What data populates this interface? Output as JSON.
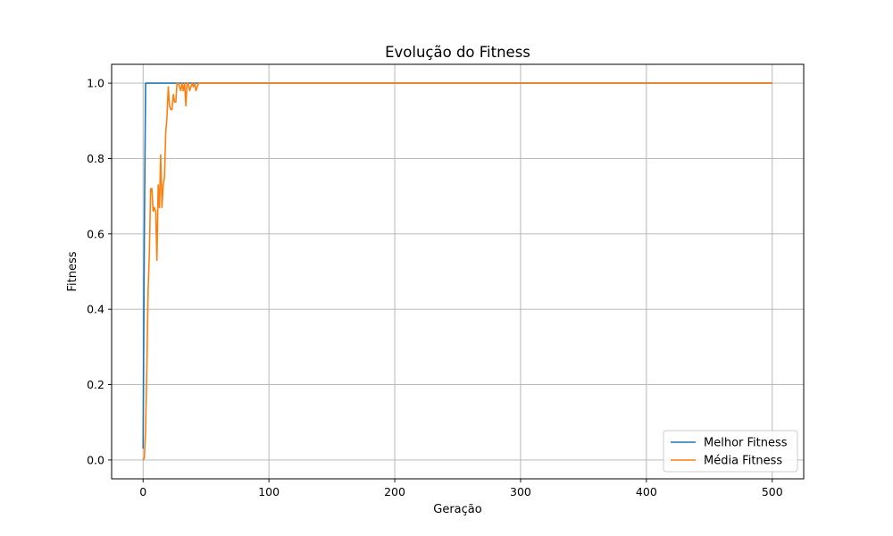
{
  "chart_data": {
    "type": "line",
    "title": "Evolução do Fitness",
    "xlabel": "Geração",
    "ylabel": "Fitness",
    "xlim": [
      -25,
      525
    ],
    "ylim": [
      -0.05,
      1.05
    ],
    "xticks": [
      0,
      100,
      200,
      300,
      400,
      500
    ],
    "yticks": [
      0.0,
      0.2,
      0.4,
      0.6,
      0.8,
      1.0
    ],
    "xtick_labels": [
      "0",
      "100",
      "200",
      "300",
      "400",
      "500"
    ],
    "ytick_labels": [
      "0.0",
      "0.2",
      "0.4",
      "0.6",
      "0.8",
      "1.0"
    ],
    "grid": true,
    "legend_position": "bottom-right",
    "series": [
      {
        "name": "Melhor Fitness",
        "color": "#1f77b4",
        "x": [
          0,
          1,
          2,
          3,
          500
        ],
        "y": [
          0.03,
          0.6,
          1.0,
          1.0,
          1.0
        ]
      },
      {
        "name": "Média Fitness",
        "color": "#ff7f0e",
        "x": [
          0,
          1,
          2,
          3,
          4,
          5,
          6,
          7,
          8,
          9,
          10,
          11,
          12,
          13,
          14,
          15,
          16,
          17,
          18,
          19,
          20,
          21,
          22,
          23,
          24,
          25,
          26,
          27,
          28,
          29,
          30,
          31,
          32,
          33,
          34,
          35,
          36,
          37,
          38,
          39,
          40,
          41,
          42,
          43,
          44,
          45,
          46,
          500
        ],
        "y": [
          0.0,
          0.005,
          0.08,
          0.25,
          0.45,
          0.55,
          0.72,
          0.72,
          0.66,
          0.67,
          0.66,
          0.53,
          0.73,
          0.67,
          0.81,
          0.67,
          0.73,
          0.75,
          0.87,
          0.91,
          0.99,
          0.94,
          0.93,
          0.93,
          0.97,
          0.95,
          0.95,
          1.0,
          1.0,
          0.99,
          0.98,
          1.0,
          0.98,
          1.0,
          0.94,
          1.0,
          1.0,
          0.98,
          0.99,
          1.0,
          0.99,
          1.0,
          0.98,
          0.99,
          1.0,
          1.0,
          1.0,
          1.0
        ]
      }
    ]
  }
}
